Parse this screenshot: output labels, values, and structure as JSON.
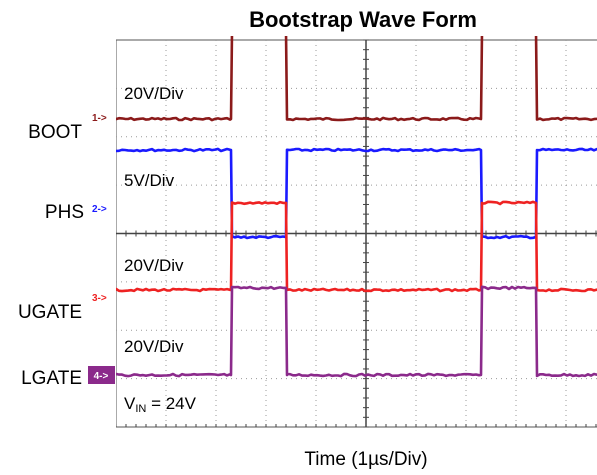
{
  "chart_data": {
    "type": "line",
    "title": "Bootstrap Wave Form",
    "xlabel": "Time (1µs/Div)",
    "x_divisions": 10,
    "y_divisions": 8,
    "grid": true,
    "series": [
      {
        "name": "BOOT",
        "marker": "1->",
        "scale": "20V/Div",
        "color": "#8b1a1a",
        "levels": {
          "low_div": 0,
          "high_div": 1.8
        },
        "transitions": [
          {
            "rise": 2.3,
            "fall": 3.4
          },
          {
            "rise": 7.3,
            "fall": 8.4
          }
        ]
      },
      {
        "name": "PHS",
        "marker": "2->",
        "scale": "5V/Div",
        "color": "#1a1aff",
        "levels": {
          "low_div": -1.8,
          "high_div": 0
        },
        "transitions": [
          {
            "fall": 2.3,
            "rise": 3.4
          },
          {
            "fall": 7.3,
            "rise": 8.4
          }
        ]
      },
      {
        "name": "UGATE",
        "marker": "3->",
        "scale": "20V/Div",
        "color": "#ee2222",
        "levels": {
          "low_div": 0,
          "high_div": 1.8
        },
        "transitions": [
          {
            "rise": 2.3,
            "fall": 3.4
          },
          {
            "rise": 7.3,
            "fall": 8.4
          }
        ]
      },
      {
        "name": "LGATE",
        "marker": "4->",
        "scale": "20V/Div",
        "color": "#8b2a8b",
        "levels": {
          "low_div": 0,
          "high_div": 1.8
        },
        "transitions": [
          {
            "rise": 2.3,
            "fall": 3.4
          },
          {
            "rise": 7.3,
            "fall": 8.4
          }
        ]
      }
    ],
    "annotation": {
      "prefix": "V",
      "subscript": "IN",
      "suffix": " = 24V"
    }
  }
}
